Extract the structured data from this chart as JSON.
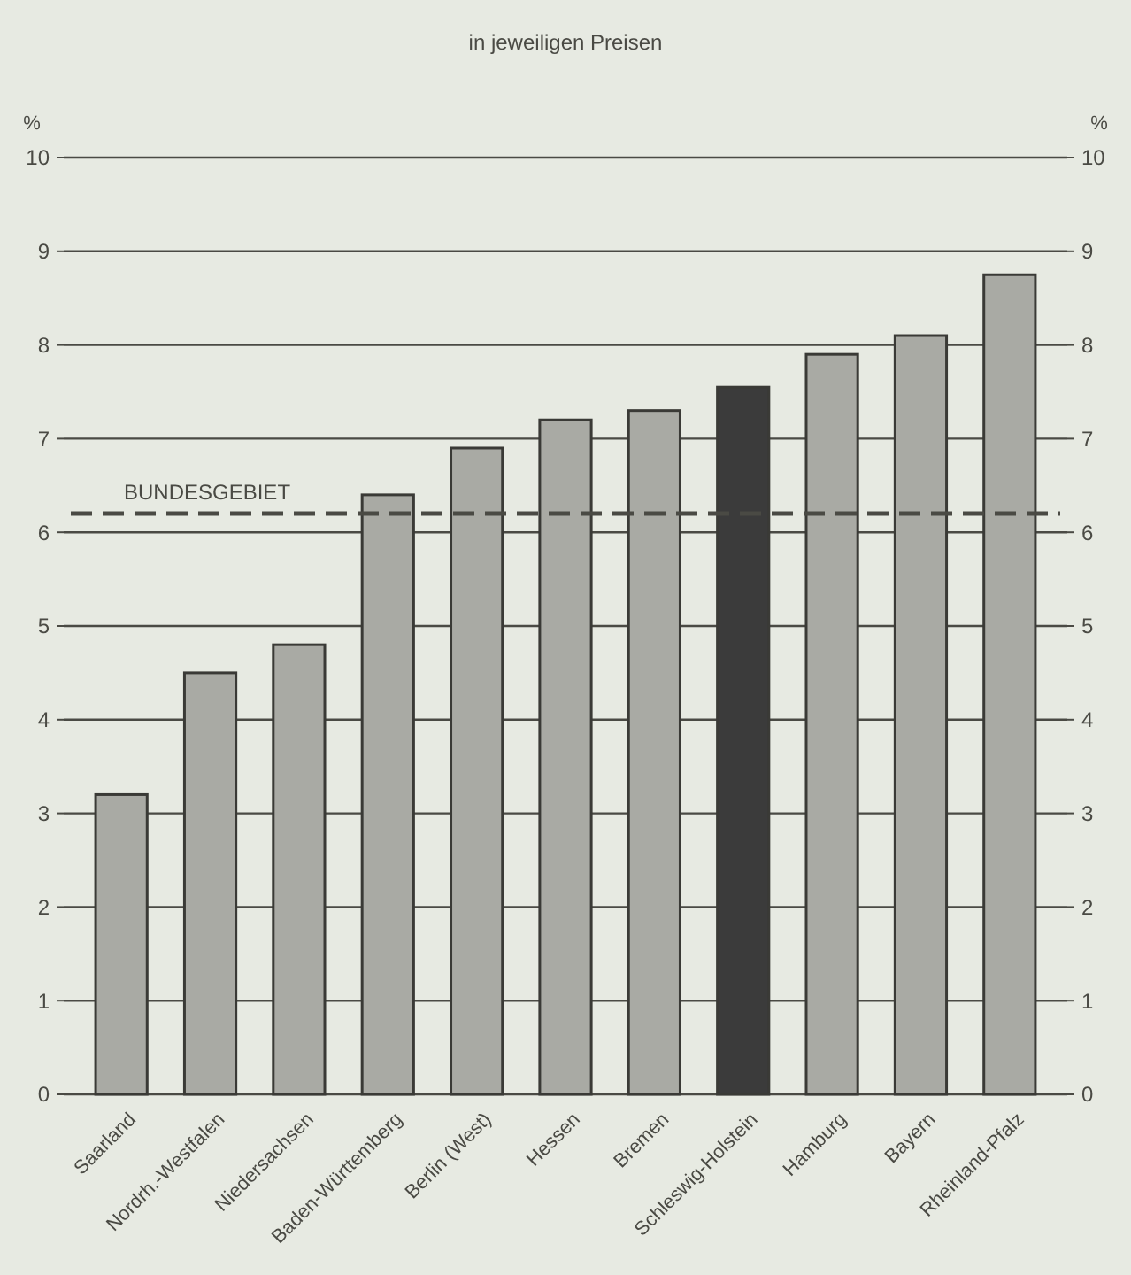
{
  "chart_data": {
    "type": "bar",
    "title": "in jeweiligen Preisen",
    "ylabel": "%",
    "y2label": "%",
    "categories": [
      "Saarland",
      "Nordrh.-Westfalen",
      "Niedersachsen",
      "Baden-Württemberg",
      "Berlin (West)",
      "Hessen",
      "Bremen",
      "Schleswig-Holstein",
      "Hamburg",
      "Bayern",
      "Rheinland-Pfalz"
    ],
    "values": [
      3.2,
      4.5,
      4.8,
      6.4,
      6.9,
      7.2,
      7.3,
      7.55,
      7.9,
      8.1,
      8.75
    ],
    "colors": [
      "#a9aaa4",
      "#a9aaa4",
      "#a9aaa4",
      "#a9aaa4",
      "#a9aaa4",
      "#a9aaa4",
      "#a9aaa4",
      "#3b3b3b",
      "#a9aaa4",
      "#a9aaa4",
      "#a9aaa4"
    ],
    "ylim": [
      0,
      10
    ],
    "yticks": [
      0,
      1,
      2,
      3,
      4,
      5,
      6,
      7,
      8,
      9,
      10
    ],
    "y2lim": [
      0,
      10
    ],
    "y2ticks": [
      0,
      1,
      2,
      3,
      4,
      5,
      6,
      7,
      8,
      9,
      10
    ],
    "ref_lines": [
      {
        "axis": "y",
        "value": 6.2,
        "label": "BUNDESGEBIET",
        "color": "#4a4a44",
        "line_style": "dashed"
      }
    ],
    "grid": "y"
  }
}
